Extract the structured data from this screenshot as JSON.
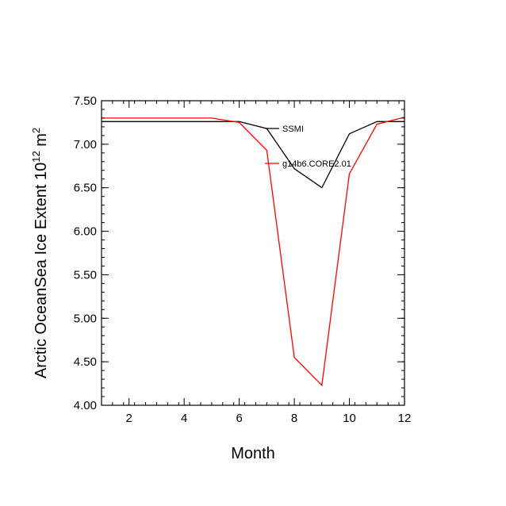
{
  "chart_data": {
    "type": "line",
    "xlabel": "Month",
    "ylabel": {
      "text": "Arctic OceanSea Ice Extent 10",
      "superscript": "12",
      "unit": " m",
      "unit_superscript": "2"
    },
    "xlim": [
      1,
      12
    ],
    "ylim": [
      4.0,
      7.5
    ],
    "x_ticks": [
      2,
      4,
      6,
      8,
      10,
      12
    ],
    "x_tick_labels": [
      "2",
      "4",
      "6",
      "8",
      "10",
      "12"
    ],
    "y_ticks": [
      4.0,
      4.5,
      5.0,
      5.5,
      6.0,
      6.5,
      7.0,
      7.5
    ],
    "y_tick_labels": [
      "4.00",
      "4.50",
      "5.00",
      "5.50",
      "6.00",
      "6.50",
      "7.00",
      "7.50"
    ],
    "grid": false,
    "x": [
      1,
      2,
      3,
      4,
      5,
      6,
      7,
      8,
      9,
      10,
      11,
      12
    ],
    "series": [
      {
        "name": "SSMI",
        "color": "#000000",
        "values": [
          7.26,
          7.26,
          7.26,
          7.26,
          7.26,
          7.26,
          7.18,
          6.72,
          6.5,
          7.12,
          7.26,
          7.26
        ]
      },
      {
        "name": "g14b6.CORE2.01",
        "color": "#ff0000",
        "values": [
          7.3,
          7.3,
          7.3,
          7.3,
          7.3,
          7.25,
          6.93,
          4.55,
          4.23,
          6.66,
          7.23,
          7.31
        ]
      }
    ],
    "legend_placement": "inside-top-right"
  }
}
